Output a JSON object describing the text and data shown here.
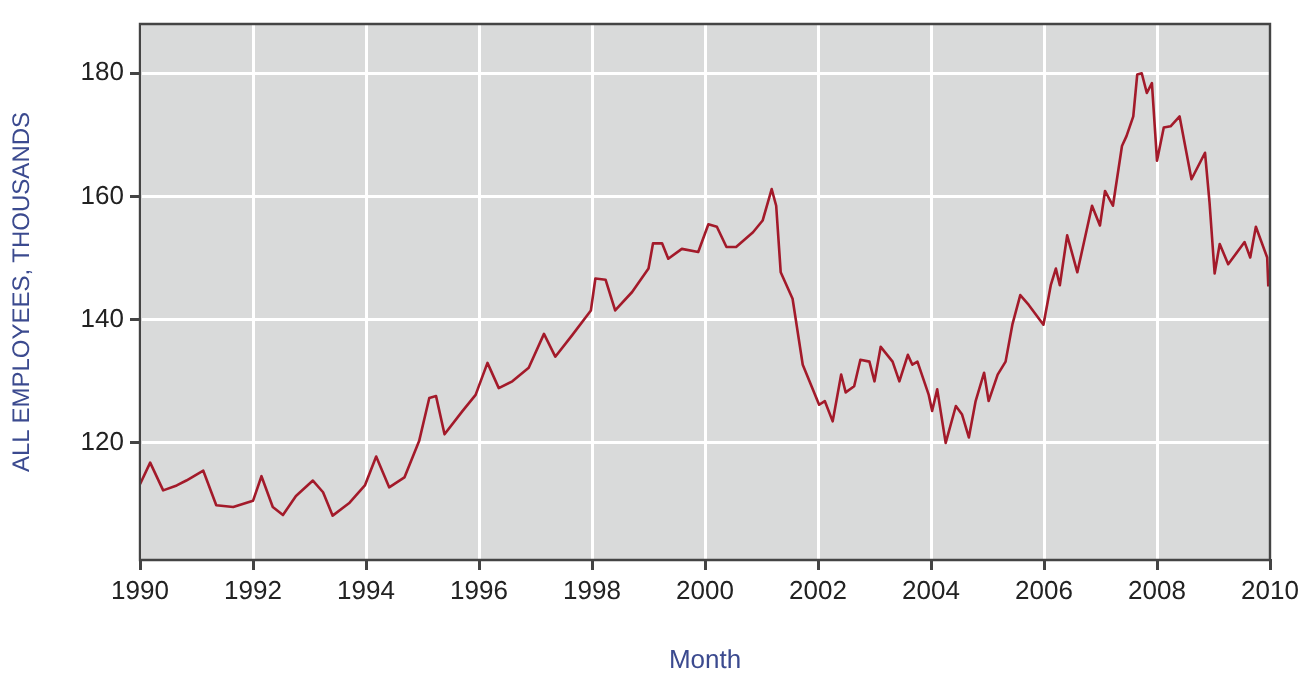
{
  "chart_data": {
    "type": "line",
    "xlabel": "Month",
    "ylabel": "ALL EMPLOYEES, THOUSANDS",
    "xlim": [
      1990,
      2010
    ],
    "xticks": [
      1990,
      1992,
      1994,
      1996,
      1998,
      2000,
      2002,
      2004,
      2006,
      2008,
      2010
    ],
    "ylim": [
      101,
      188
    ],
    "yticks": [
      120,
      140,
      160,
      180
    ],
    "grid": true,
    "legend": false,
    "marker": "none",
    "line_style": "solid",
    "series": [
      {
        "color": "#a31a2a",
        "x": [
          1990.0,
          1990.18,
          1990.41,
          1990.65,
          1990.82,
          1991.12,
          1991.35,
          1991.65,
          1992.0,
          1992.15,
          1992.35,
          1992.53,
          1992.76,
          1993.06,
          1993.24,
          1993.41,
          1993.71,
          1993.98,
          1994.18,
          1994.41,
          1994.68,
          1994.94,
          1995.12,
          1995.24,
          1995.39,
          1995.71,
          1995.94,
          1996.15,
          1996.35,
          1996.59,
          1996.88,
          1997.15,
          1997.35,
          1997.65,
          1997.98,
          1998.06,
          1998.24,
          1998.41,
          1998.71,
          1999.0,
          1999.08,
          1999.24,
          1999.35,
          1999.59,
          1999.88,
          2000.06,
          2000.21,
          2000.38,
          2000.55,
          2000.85,
          2001.02,
          2001.18,
          2001.26,
          2001.34,
          2001.55,
          2001.73,
          2002.02,
          2002.12,
          2002.26,
          2002.41,
          2002.49,
          2002.64,
          2002.75,
          2002.91,
          2003.0,
          2003.11,
          2003.32,
          2003.44,
          2003.59,
          2003.67,
          2003.76,
          2003.96,
          2004.02,
          2004.11,
          2004.26,
          2004.44,
          2004.55,
          2004.67,
          2004.79,
          2004.94,
          2005.02,
          2005.18,
          2005.32,
          2005.44,
          2005.58,
          2005.73,
          2005.99,
          2006.12,
          2006.21,
          2006.28,
          2006.41,
          2006.59,
          2006.85,
          2006.99,
          2007.08,
          2007.22,
          2007.38,
          2007.46,
          2007.58,
          2007.65,
          2007.73,
          2007.82,
          2007.91,
          2008.0,
          2008.12,
          2008.24,
          2008.4,
          2008.61,
          2008.85,
          2008.93,
          2009.02,
          2009.11,
          2009.26,
          2009.55,
          2009.65,
          2009.75,
          2009.95,
          2009.97
        ],
        "values": [
          113.3,
          116.8,
          112.3,
          113.1,
          113.9,
          115.5,
          109.9,
          109.6,
          110.6,
          114.6,
          109.6,
          108.3,
          111.4,
          113.9,
          112.0,
          108.2,
          110.3,
          113.1,
          117.8,
          112.8,
          114.4,
          120.3,
          127.3,
          127.6,
          121.4,
          125.2,
          127.8,
          133.0,
          128.9,
          130.0,
          132.2,
          137.7,
          134.0,
          137.5,
          141.5,
          146.7,
          146.5,
          141.5,
          144.5,
          148.3,
          152.4,
          152.4,
          149.9,
          151.5,
          151.0,
          155.5,
          155.1,
          151.8,
          151.8,
          154.2,
          156.1,
          161.2,
          158.5,
          147.7,
          143.4,
          132.7,
          126.2,
          126.8,
          123.5,
          131.1,
          128.2,
          129.2,
          133.5,
          133.2,
          130.0,
          135.6,
          133.2,
          130.0,
          134.3,
          132.7,
          133.2,
          127.8,
          125.2,
          128.7,
          120.0,
          126.0,
          124.6,
          120.9,
          126.8,
          131.4,
          126.8,
          131.1,
          133.2,
          139.2,
          144.0,
          142.4,
          139.2,
          145.6,
          148.3,
          145.6,
          153.7,
          147.7,
          158.5,
          155.3,
          160.9,
          158.5,
          168.2,
          169.8,
          173.0,
          179.8,
          180.0,
          176.8,
          178.4,
          165.8,
          171.2,
          171.4,
          173.0,
          162.8,
          167.1,
          159.0,
          147.5,
          152.3,
          149.0,
          152.6,
          150.1,
          155.1,
          150.1,
          145.4
        ]
      }
    ]
  }
}
